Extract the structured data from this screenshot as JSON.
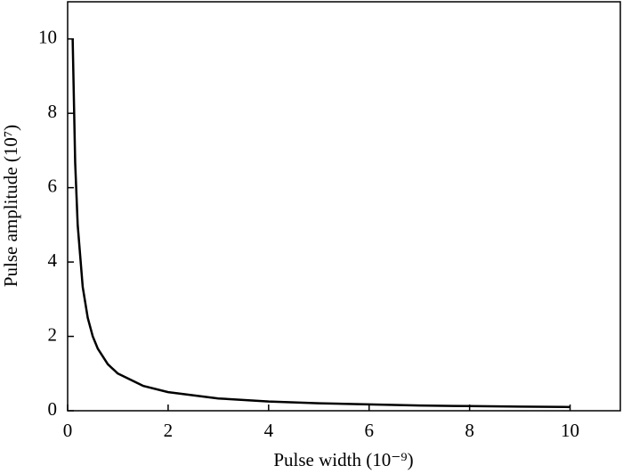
{
  "chart_data": {
    "type": "line",
    "x_label": "Pulse width (10⁻⁹)",
    "y_label": "Pulse amplitude (10⁷)",
    "x": [
      0.1,
      0.15,
      0.2,
      0.3,
      0.4,
      0.5,
      0.6,
      0.8,
      1,
      1.5,
      2,
      3,
      4,
      5,
      6,
      7,
      8,
      9,
      10
    ],
    "values": [
      10,
      6.67,
      5,
      3.33,
      2.5,
      2,
      1.67,
      1.25,
      1,
      0.67,
      0.5,
      0.33,
      0.25,
      0.2,
      0.17,
      0.14,
      0.125,
      0.11,
      0.1
    ],
    "color": "#000000",
    "xlim": [
      0,
      11
    ],
    "xticks": [
      0,
      2,
      4,
      6,
      8,
      10
    ],
    "ylim": [
      0,
      11
    ],
    "yticks": [
      0,
      2,
      4,
      6,
      8,
      10
    ]
  }
}
